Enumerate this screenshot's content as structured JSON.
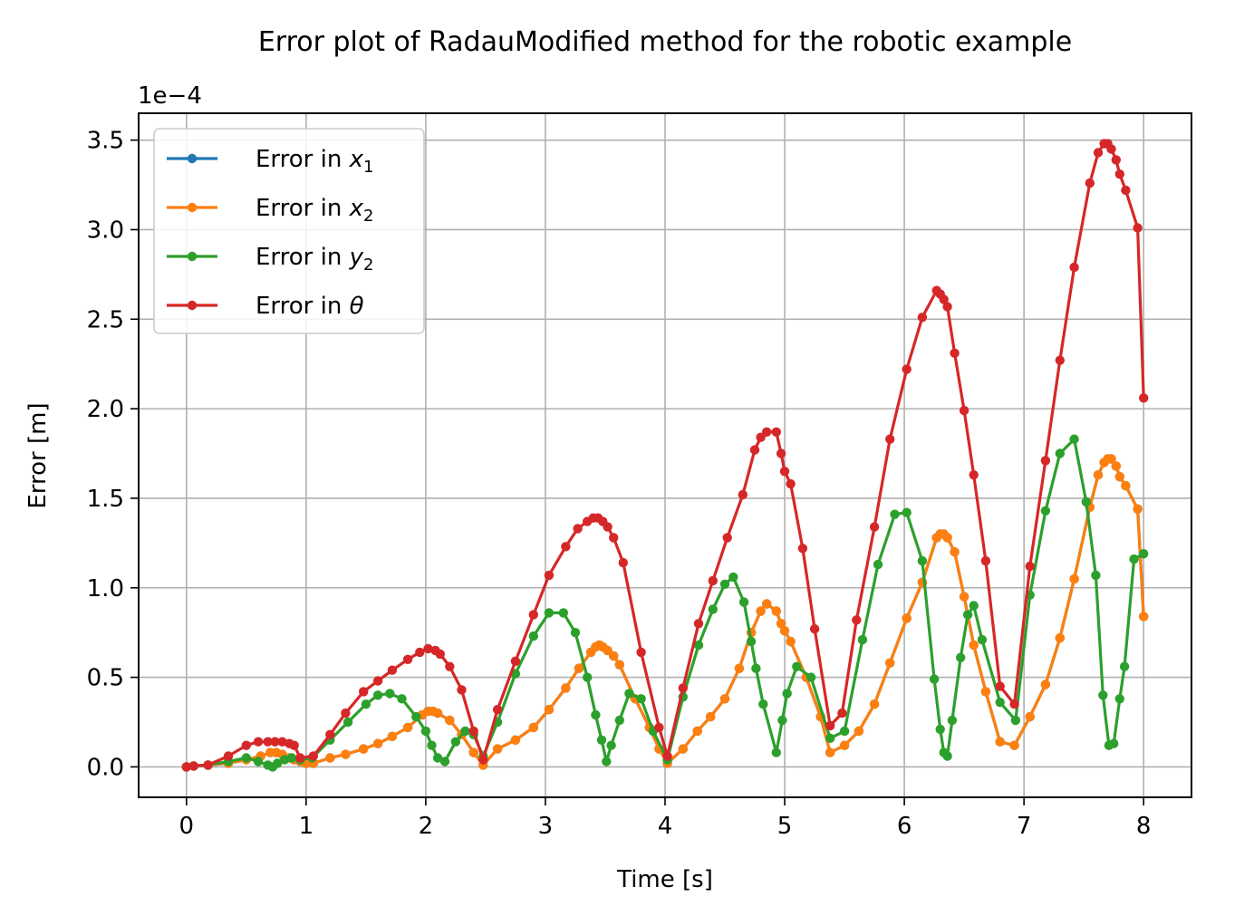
{
  "chart_data": {
    "type": "line",
    "title": "Error plot of RadauModified method for the robotic example",
    "xlabel": "Time [s]",
    "ylabel": "Error [m]",
    "y_offset_label": "1e−4",
    "y_scale": 0.0001,
    "xlim": [
      -0.4,
      8.4
    ],
    "ylim": [
      -0.17,
      3.65
    ],
    "xticks": [
      0,
      1,
      2,
      3,
      4,
      5,
      6,
      7,
      8
    ],
    "xtick_labels": [
      "0",
      "1",
      "2",
      "3",
      "4",
      "5",
      "6",
      "7",
      "8"
    ],
    "yticks": [
      0.0,
      0.5,
      1.0,
      1.5,
      2.0,
      2.5,
      3.0,
      3.5
    ],
    "ytick_labels": [
      "0.0",
      "0.5",
      "1.0",
      "1.5",
      "2.0",
      "2.5",
      "3.0",
      "3.5"
    ],
    "grid": true,
    "legend_position": "top-left",
    "series": [
      {
        "name": "Error in x1",
        "legend_base": "Error in ",
        "legend_var": "x",
        "legend_sub": "1",
        "color": "#1f77b4",
        "x": [
          0,
          0.06,
          0.18,
          0.35,
          0.5,
          0.62,
          0.7,
          0.75,
          0.8,
          0.86,
          0.9,
          0.95,
          1.0,
          1.06,
          1.2,
          1.33,
          1.48,
          1.6,
          1.72,
          1.85,
          1.97,
          2.02,
          2.06,
          2.1,
          2.2,
          2.3,
          2.4,
          2.48,
          2.6,
          2.75,
          2.9,
          3.03,
          3.17,
          3.28,
          3.38,
          3.42,
          3.45,
          3.48,
          3.52,
          3.57,
          3.62,
          3.75,
          3.87,
          3.95,
          4.02,
          4.15,
          4.27,
          4.38,
          4.5,
          4.62,
          4.72,
          4.8,
          4.85,
          4.93,
          4.97,
          5.0,
          5.05,
          5.18,
          5.3,
          5.38,
          5.5,
          5.62,
          5.75,
          5.88,
          6.02,
          6.15,
          6.27,
          6.3,
          6.33,
          6.36,
          6.42,
          6.5,
          6.58,
          6.68,
          6.8,
          6.92,
          7.05,
          7.18,
          7.3,
          7.42,
          7.55,
          7.62,
          7.67,
          7.7,
          7.73,
          7.77,
          7.8,
          7.85,
          7.95,
          8.0
        ],
        "y": [
          0.0,
          0.005,
          0.01,
          0.02,
          0.04,
          0.06,
          0.08,
          0.08,
          0.07,
          0.05,
          0.04,
          0.03,
          0.02,
          0.02,
          0.05,
          0.07,
          0.1,
          0.13,
          0.17,
          0.22,
          0.29,
          0.31,
          0.31,
          0.3,
          0.26,
          0.18,
          0.08,
          0.01,
          0.1,
          0.15,
          0.22,
          0.32,
          0.44,
          0.55,
          0.64,
          0.67,
          0.68,
          0.67,
          0.65,
          0.62,
          0.57,
          0.38,
          0.22,
          0.1,
          0.02,
          0.1,
          0.2,
          0.28,
          0.38,
          0.55,
          0.75,
          0.87,
          0.91,
          0.87,
          0.8,
          0.76,
          0.7,
          0.5,
          0.28,
          0.08,
          0.12,
          0.2,
          0.35,
          0.58,
          0.83,
          1.03,
          1.28,
          1.3,
          1.3,
          1.28,
          1.2,
          0.95,
          0.68,
          0.42,
          0.14,
          0.12,
          0.28,
          0.46,
          0.72,
          1.05,
          1.45,
          1.63,
          1.7,
          1.72,
          1.72,
          1.68,
          1.62,
          1.57,
          1.44,
          0.84
        ]
      },
      {
        "name": "Error in x2",
        "legend_base": "Error in ",
        "legend_var": "x",
        "legend_sub": "2",
        "color": "#ff7f0e",
        "x": [
          0,
          0.06,
          0.18,
          0.35,
          0.5,
          0.62,
          0.7,
          0.75,
          0.8,
          0.86,
          0.9,
          0.95,
          1.0,
          1.06,
          1.2,
          1.33,
          1.48,
          1.6,
          1.72,
          1.85,
          1.97,
          2.02,
          2.06,
          2.1,
          2.2,
          2.3,
          2.4,
          2.48,
          2.6,
          2.75,
          2.9,
          3.03,
          3.17,
          3.28,
          3.38,
          3.42,
          3.45,
          3.48,
          3.52,
          3.57,
          3.62,
          3.75,
          3.87,
          3.95,
          4.02,
          4.15,
          4.27,
          4.38,
          4.5,
          4.62,
          4.72,
          4.8,
          4.85,
          4.93,
          4.97,
          5.0,
          5.05,
          5.18,
          5.3,
          5.38,
          5.5,
          5.62,
          5.75,
          5.88,
          6.02,
          6.15,
          6.27,
          6.3,
          6.33,
          6.36,
          6.42,
          6.5,
          6.58,
          6.68,
          6.8,
          6.92,
          7.05,
          7.18,
          7.3,
          7.42,
          7.55,
          7.62,
          7.67,
          7.7,
          7.73,
          7.77,
          7.8,
          7.85,
          7.95,
          8.0
        ],
        "y": [
          0.0,
          0.005,
          0.01,
          0.02,
          0.04,
          0.06,
          0.08,
          0.08,
          0.07,
          0.05,
          0.04,
          0.03,
          0.02,
          0.02,
          0.05,
          0.07,
          0.1,
          0.13,
          0.17,
          0.22,
          0.29,
          0.31,
          0.31,
          0.3,
          0.26,
          0.18,
          0.08,
          0.01,
          0.1,
          0.15,
          0.22,
          0.32,
          0.44,
          0.55,
          0.64,
          0.67,
          0.68,
          0.67,
          0.65,
          0.62,
          0.57,
          0.38,
          0.22,
          0.1,
          0.02,
          0.1,
          0.2,
          0.28,
          0.38,
          0.55,
          0.75,
          0.87,
          0.91,
          0.87,
          0.8,
          0.76,
          0.7,
          0.5,
          0.28,
          0.08,
          0.12,
          0.2,
          0.35,
          0.58,
          0.83,
          1.03,
          1.28,
          1.3,
          1.3,
          1.28,
          1.2,
          0.95,
          0.68,
          0.42,
          0.14,
          0.12,
          0.28,
          0.46,
          0.72,
          1.05,
          1.45,
          1.63,
          1.7,
          1.72,
          1.72,
          1.68,
          1.62,
          1.57,
          1.44,
          0.84
        ]
      },
      {
        "name": "Error in y2",
        "legend_base": "Error in ",
        "legend_var": "y",
        "legend_sub": "2",
        "color": "#2ca02c",
        "x": [
          0,
          0.06,
          0.18,
          0.35,
          0.5,
          0.6,
          0.68,
          0.72,
          0.76,
          0.82,
          0.88,
          0.95,
          1.05,
          1.2,
          1.35,
          1.5,
          1.6,
          1.7,
          1.8,
          1.92,
          2.0,
          2.05,
          2.1,
          2.16,
          2.25,
          2.33,
          2.4,
          2.48,
          2.6,
          2.75,
          2.9,
          3.03,
          3.15,
          3.25,
          3.35,
          3.42,
          3.47,
          3.51,
          3.55,
          3.62,
          3.7,
          3.8,
          3.9,
          4.02,
          4.15,
          4.28,
          4.4,
          4.5,
          4.57,
          4.66,
          4.72,
          4.76,
          4.82,
          4.93,
          4.98,
          5.02,
          5.1,
          5.22,
          5.38,
          5.5,
          5.65,
          5.78,
          5.92,
          6.02,
          6.15,
          6.25,
          6.3,
          6.33,
          6.36,
          6.4,
          6.47,
          6.53,
          6.58,
          6.65,
          6.8,
          6.93,
          7.05,
          7.18,
          7.3,
          7.42,
          7.52,
          7.6,
          7.66,
          7.71,
          7.75,
          7.8,
          7.84,
          7.92,
          8.0
        ],
        "y": [
          0.0,
          0.005,
          0.01,
          0.03,
          0.05,
          0.03,
          0.01,
          0.0,
          0.02,
          0.04,
          0.05,
          0.04,
          0.05,
          0.15,
          0.25,
          0.35,
          0.4,
          0.41,
          0.38,
          0.28,
          0.2,
          0.12,
          0.05,
          0.03,
          0.14,
          0.2,
          0.18,
          0.06,
          0.25,
          0.52,
          0.73,
          0.86,
          0.86,
          0.75,
          0.5,
          0.29,
          0.15,
          0.03,
          0.12,
          0.26,
          0.41,
          0.38,
          0.2,
          0.04,
          0.39,
          0.68,
          0.88,
          1.02,
          1.06,
          0.92,
          0.7,
          0.55,
          0.35,
          0.08,
          0.26,
          0.41,
          0.56,
          0.5,
          0.16,
          0.2,
          0.71,
          1.13,
          1.41,
          1.42,
          1.15,
          0.49,
          0.21,
          0.08,
          0.06,
          0.26,
          0.61,
          0.85,
          0.9,
          0.71,
          0.36,
          0.26,
          0.96,
          1.43,
          1.75,
          1.83,
          1.48,
          1.07,
          0.4,
          0.12,
          0.13,
          0.38,
          0.56,
          1.16,
          1.19
        ]
      },
      {
        "name": "Error in theta",
        "legend_base": "Error in ",
        "legend_var": "θ",
        "legend_sub": "",
        "color": "#d62728",
        "x": [
          0,
          0.06,
          0.18,
          0.35,
          0.5,
          0.6,
          0.68,
          0.74,
          0.8,
          0.86,
          0.9,
          0.95,
          1.06,
          1.2,
          1.33,
          1.48,
          1.6,
          1.72,
          1.85,
          1.95,
          2.02,
          2.08,
          2.12,
          2.2,
          2.3,
          2.4,
          2.48,
          2.6,
          2.75,
          2.9,
          3.03,
          3.17,
          3.27,
          3.35,
          3.4,
          3.44,
          3.48,
          3.52,
          3.57,
          3.65,
          3.8,
          3.95,
          4.02,
          4.15,
          4.28,
          4.4,
          4.52,
          4.65,
          4.75,
          4.8,
          4.85,
          4.93,
          4.97,
          5.0,
          5.05,
          5.15,
          5.25,
          5.38,
          5.48,
          5.6,
          5.75,
          5.88,
          6.02,
          6.15,
          6.27,
          6.3,
          6.33,
          6.36,
          6.42,
          6.5,
          6.58,
          6.68,
          6.8,
          6.92,
          7.05,
          7.18,
          7.3,
          7.42,
          7.55,
          7.62,
          7.67,
          7.7,
          7.73,
          7.77,
          7.8,
          7.85,
          7.95,
          8.0
        ],
        "y": [
          0.0,
          0.005,
          0.01,
          0.06,
          0.12,
          0.14,
          0.14,
          0.14,
          0.14,
          0.13,
          0.12,
          0.05,
          0.06,
          0.18,
          0.3,
          0.42,
          0.48,
          0.54,
          0.6,
          0.64,
          0.66,
          0.65,
          0.63,
          0.56,
          0.43,
          0.2,
          0.04,
          0.32,
          0.59,
          0.85,
          1.07,
          1.23,
          1.33,
          1.37,
          1.39,
          1.39,
          1.37,
          1.34,
          1.28,
          1.14,
          0.64,
          0.22,
          0.06,
          0.44,
          0.8,
          1.04,
          1.28,
          1.52,
          1.77,
          1.84,
          1.87,
          1.87,
          1.75,
          1.65,
          1.58,
          1.22,
          0.77,
          0.23,
          0.3,
          0.82,
          1.34,
          1.83,
          2.22,
          2.51,
          2.66,
          2.64,
          2.61,
          2.57,
          2.31,
          1.99,
          1.63,
          1.15,
          0.45,
          0.35,
          1.12,
          1.71,
          2.27,
          2.79,
          3.26,
          3.43,
          3.48,
          3.48,
          3.45,
          3.39,
          3.31,
          3.22,
          3.01,
          2.06
        ]
      }
    ]
  }
}
